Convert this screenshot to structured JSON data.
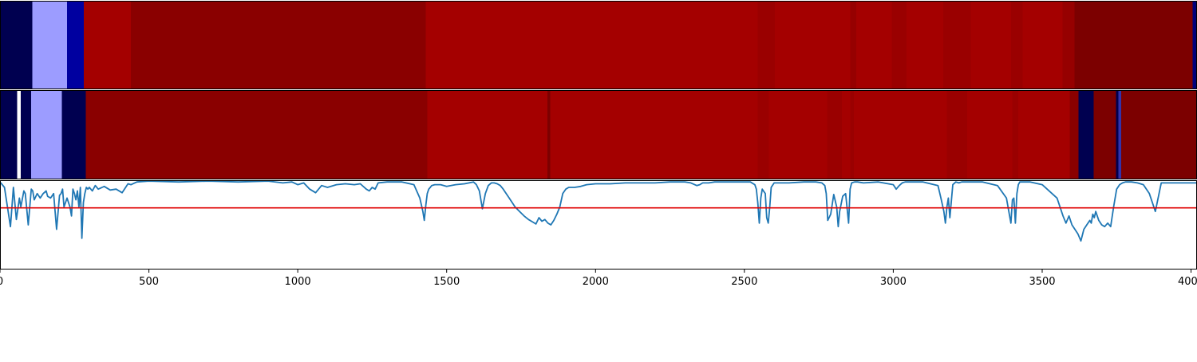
{
  "chart_data": {
    "type": "heatmap",
    "title": "",
    "xlabel": "",
    "ylabel": "",
    "xlim": [
      0,
      4020
    ],
    "xticks": [
      0,
      500,
      1000,
      1500,
      2000,
      2500,
      3000,
      3500,
      4000
    ],
    "tick_labels": [
      "0",
      "500",
      "1000",
      "1500",
      "2000",
      "2500",
      "3000",
      "3500",
      "4000"
    ],
    "grid": false,
    "colormap": "seismic",
    "heatmap_rows": [
      {
        "segments": [
          {
            "start": 0,
            "end": 108,
            "color": "#000050"
          },
          {
            "start": 108,
            "end": 225,
            "color": "#9c9cff"
          },
          {
            "start": 225,
            "end": 282,
            "color": "#0000a0"
          },
          {
            "start": 282,
            "end": 440,
            "color": "#a40000"
          },
          {
            "start": 440,
            "end": 1430,
            "color": "#8a0000"
          },
          {
            "start": 1430,
            "end": 2545,
            "color": "#a40000"
          },
          {
            "start": 2545,
            "end": 2602,
            "color": "#9a0000"
          },
          {
            "start": 2602,
            "end": 2855,
            "color": "#a40000"
          },
          {
            "start": 2855,
            "end": 2875,
            "color": "#960000"
          },
          {
            "start": 2875,
            "end": 2995,
            "color": "#a40000"
          },
          {
            "start": 2995,
            "end": 3045,
            "color": "#9a0000"
          },
          {
            "start": 3045,
            "end": 3168,
            "color": "#a40000"
          },
          {
            "start": 3168,
            "end": 3260,
            "color": "#9a0000"
          },
          {
            "start": 3260,
            "end": 3395,
            "color": "#a40000"
          },
          {
            "start": 3395,
            "end": 3435,
            "color": "#9a0000"
          },
          {
            "start": 3435,
            "end": 3568,
            "color": "#a40000"
          },
          {
            "start": 3568,
            "end": 3608,
            "color": "#960000"
          },
          {
            "start": 3608,
            "end": 4005,
            "color": "#7c0000"
          },
          {
            "start": 4005,
            "end": 4020,
            "color": "#00007a"
          }
        ]
      },
      {
        "segments": [
          {
            "start": 0,
            "end": 58,
            "color": "#000050"
          },
          {
            "start": 58,
            "end": 70,
            "color": "#ffffff"
          },
          {
            "start": 70,
            "end": 105,
            "color": "#000050"
          },
          {
            "start": 105,
            "end": 208,
            "color": "#9c9cff"
          },
          {
            "start": 208,
            "end": 288,
            "color": "#000050"
          },
          {
            "start": 288,
            "end": 1435,
            "color": "#8a0000"
          },
          {
            "start": 1435,
            "end": 1838,
            "color": "#a40000"
          },
          {
            "start": 1838,
            "end": 1848,
            "color": "#7c0000"
          },
          {
            "start": 1848,
            "end": 2545,
            "color": "#a40000"
          },
          {
            "start": 2545,
            "end": 2582,
            "color": "#9a0000"
          },
          {
            "start": 2582,
            "end": 2778,
            "color": "#a40000"
          },
          {
            "start": 2778,
            "end": 2828,
            "color": "#9a0000"
          },
          {
            "start": 2828,
            "end": 2855,
            "color": "#a40000"
          },
          {
            "start": 2855,
            "end": 2868,
            "color": "#9a0000"
          },
          {
            "start": 2868,
            "end": 3180,
            "color": "#a40000"
          },
          {
            "start": 3180,
            "end": 3248,
            "color": "#9a0000"
          },
          {
            "start": 3248,
            "end": 3400,
            "color": "#a40000"
          },
          {
            "start": 3400,
            "end": 3420,
            "color": "#9a0000"
          },
          {
            "start": 3420,
            "end": 3592,
            "color": "#a40000"
          },
          {
            "start": 3592,
            "end": 3622,
            "color": "#8a0000"
          },
          {
            "start": 3622,
            "end": 3673,
            "color": "#000050"
          },
          {
            "start": 3673,
            "end": 3748,
            "color": "#7c0000"
          },
          {
            "start": 3748,
            "end": 3756,
            "color": "#000050"
          },
          {
            "start": 3756,
            "end": 3765,
            "color": "#3333aa"
          },
          {
            "start": 3765,
            "end": 4020,
            "color": "#7c0000"
          }
        ]
      }
    ],
    "line_panel": {
      "ylim": [
        0,
        1
      ],
      "threshold": 0.31,
      "threshold_color": "#e00000",
      "series": [
        {
          "color": "#1f77b4",
          "x": [
            0,
            15,
            35,
            45,
            55,
            65,
            70,
            80,
            85,
            95,
            105,
            110,
            115,
            125,
            135,
            145,
            155,
            160,
            170,
            180,
            190,
            200,
            205,
            210,
            215,
            225,
            235,
            240,
            245,
            250,
            255,
            260,
            265,
            270,
            275,
            280,
            285,
            290,
            295,
            300,
            310,
            320,
            330,
            350,
            370,
            390,
            410,
            430,
            440,
            460,
            500,
            600,
            700,
            800,
            900,
            950,
            980,
            1000,
            1020,
            1040,
            1060,
            1080,
            1100,
            1130,
            1160,
            1190,
            1210,
            1230,
            1240,
            1250,
            1260,
            1270,
            1300,
            1350,
            1390,
            1410,
            1420,
            1425,
            1430,
            1435,
            1440,
            1445,
            1450,
            1460,
            1480,
            1500,
            1530,
            1560,
            1590,
            1600,
            1610,
            1620,
            1630,
            1640,
            1650,
            1655,
            1660,
            1670,
            1680,
            1690,
            1700,
            1710,
            1720,
            1730,
            1745,
            1760,
            1775,
            1790,
            1800,
            1810,
            1820,
            1830,
            1840,
            1850,
            1860,
            1870,
            1880,
            1890,
            1900,
            1910,
            1930,
            1950,
            1970,
            2000,
            2050,
            2100,
            2150,
            2200,
            2250,
            2300,
            2320,
            2340,
            2350,
            2360,
            2380,
            2400,
            2450,
            2500,
            2520,
            2535,
            2540,
            2545,
            2550,
            2555,
            2560,
            2570,
            2575,
            2580,
            2585,
            2590,
            2600,
            2650,
            2700,
            2740,
            2760,
            2770,
            2775,
            2780,
            2790,
            2800,
            2810,
            2815,
            2820,
            2830,
            2840,
            2850,
            2855,
            2860,
            2870,
            2880,
            2900,
            2950,
            3000,
            3010,
            3020,
            3030,
            3040,
            3060,
            3100,
            3150,
            3160,
            3170,
            3175,
            3180,
            3185,
            3190,
            3200,
            3210,
            3220,
            3230,
            3250,
            3300,
            3350,
            3380,
            3395,
            3400,
            3405,
            3410,
            3415,
            3420,
            3425,
            3430,
            3440,
            3460,
            3500,
            3550,
            3570,
            3580,
            3590,
            3595,
            3600,
            3610,
            3620,
            3630,
            3640,
            3650,
            3660,
            3665,
            3670,
            3675,
            3680,
            3690,
            3700,
            3710,
            3720,
            3730,
            3740,
            3750,
            3760,
            3770,
            3780,
            3790,
            3800,
            3820,
            3840,
            3860,
            3880,
            3900,
            3950,
            3980,
            4000,
            4010,
            4020
          ]
        }
      ]
    }
  }
}
